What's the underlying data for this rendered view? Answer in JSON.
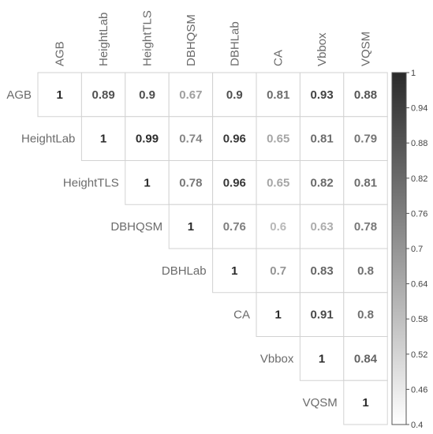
{
  "chart_data": {
    "type": "heatmap",
    "variables": [
      "AGB",
      "HeightLab",
      "HeightTLS",
      "DBHQSM",
      "DBHLab",
      "CA",
      "Vbbox",
      "VQSM"
    ],
    "matrix_upper": [
      [
        "1",
        "0.89",
        "0.9",
        "0.67",
        "0.9",
        "0.81",
        "0.93",
        "0.88"
      ],
      [
        "1",
        "0.99",
        "0.74",
        "0.96",
        "0.65",
        "0.81",
        "0.79"
      ],
      [
        "1",
        "0.78",
        "0.96",
        "0.65",
        "0.82",
        "0.81"
      ],
      [
        "1",
        "0.76",
        "0.6",
        "0.63",
        "0.78"
      ],
      [
        "1",
        "0.7",
        "0.83",
        "0.8"
      ],
      [
        "1",
        "0.91",
        "0.8"
      ],
      [
        "1",
        "0.84"
      ],
      [
        "1"
      ]
    ],
    "colorbar": {
      "range": [
        0.4,
        1
      ],
      "ticks": [
        "1",
        "0.94",
        "0.88",
        "0.82",
        "0.76",
        "0.7",
        "0.64",
        "0.58",
        "0.52",
        "0.46",
        "0.4"
      ],
      "color_low": "#ffffff",
      "color_high": "#2a2a2a"
    },
    "label_color": "#6b6b6b",
    "grid": true
  }
}
